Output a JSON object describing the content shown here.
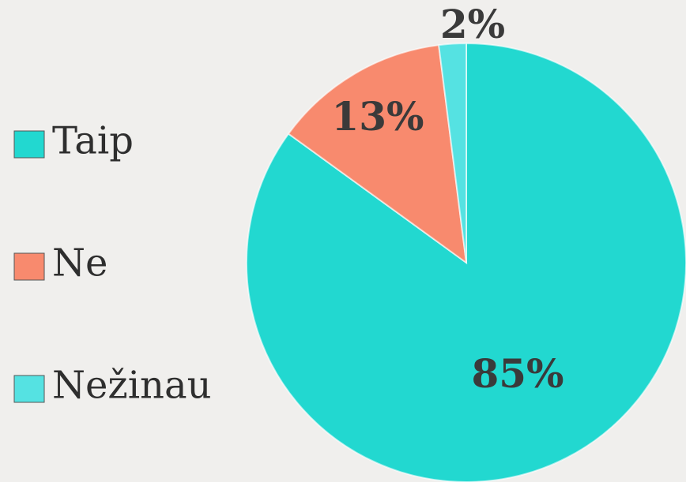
{
  "chart_data": {
    "type": "pie",
    "categories": [
      "Taip",
      "Ne",
      "Nežinau"
    ],
    "values": [
      85,
      13,
      2
    ],
    "value_labels": [
      "85%",
      "13%",
      "2%"
    ],
    "colors": [
      "#22d8d0",
      "#f88a6e",
      "#55e2e2"
    ],
    "legend": "left"
  }
}
